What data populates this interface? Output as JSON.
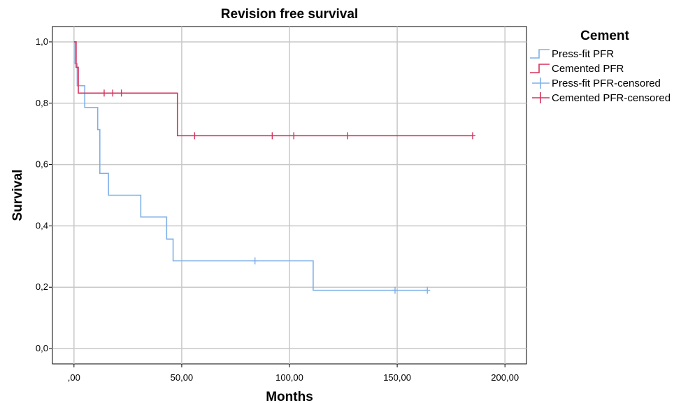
{
  "chart_data": {
    "type": "line",
    "title": "Revision free survival",
    "xlabel": "Months",
    "ylabel": "Survival",
    "xlim": [
      -10,
      210
    ],
    "ylim": [
      -0.05,
      1.05
    ],
    "x_ticks": [
      0,
      50,
      100,
      150,
      200
    ],
    "x_tick_labels": [
      ",00",
      "50,00",
      "100,00",
      "150,00",
      "200,00"
    ],
    "y_ticks": [
      0,
      0.2,
      0.4,
      0.6,
      0.8,
      1.0
    ],
    "y_tick_labels": [
      "0,0",
      "0,2",
      "0,4",
      "0,6",
      "0,8",
      "1,0"
    ],
    "grid": true,
    "legend_title": "Cement",
    "legend_position": "right",
    "legend": [
      {
        "label": "Press-fit PFR",
        "kind": "line",
        "color": "#7eb0e8"
      },
      {
        "label": "Cemented PFR",
        "kind": "line",
        "color": "#d6325c"
      },
      {
        "label": "Press-fit PFR-censored",
        "kind": "censor",
        "color": "#7eb0e8"
      },
      {
        "label": "Cemented PFR-censored",
        "kind": "censor",
        "color": "#d6325c"
      }
    ],
    "series": [
      {
        "name": "Press-fit PFR",
        "color": "#7eb0e8",
        "steps": [
          {
            "x": 0,
            "y": 1.0
          },
          {
            "x": 0.5,
            "y": 0.929
          },
          {
            "x": 1.5,
            "y": 0.857
          },
          {
            "x": 5,
            "y": 0.786
          },
          {
            "x": 11,
            "y": 0.714
          },
          {
            "x": 12,
            "y": 0.571
          },
          {
            "x": 16,
            "y": 0.5
          },
          {
            "x": 31,
            "y": 0.429
          },
          {
            "x": 43,
            "y": 0.357
          },
          {
            "x": 46,
            "y": 0.286
          },
          {
            "x": 111,
            "y": 0.19
          }
        ],
        "end_x": 164,
        "censored": [
          {
            "x": 84,
            "y": 0.286
          },
          {
            "x": 149,
            "y": 0.19
          },
          {
            "x": 164,
            "y": 0.19
          }
        ]
      },
      {
        "name": "Cemented PFR",
        "color": "#d6325c",
        "steps": [
          {
            "x": 0,
            "y": 1.0
          },
          {
            "x": 1,
            "y": 0.917
          },
          {
            "x": 2,
            "y": 0.833
          },
          {
            "x": 48,
            "y": 0.694
          }
        ],
        "end_x": 185,
        "censored": [
          {
            "x": 14,
            "y": 0.833
          },
          {
            "x": 18,
            "y": 0.833
          },
          {
            "x": 22,
            "y": 0.833
          },
          {
            "x": 56,
            "y": 0.694
          },
          {
            "x": 92,
            "y": 0.694
          },
          {
            "x": 102,
            "y": 0.694
          },
          {
            "x": 127,
            "y": 0.694
          },
          {
            "x": 185,
            "y": 0.694
          }
        ]
      }
    ]
  }
}
